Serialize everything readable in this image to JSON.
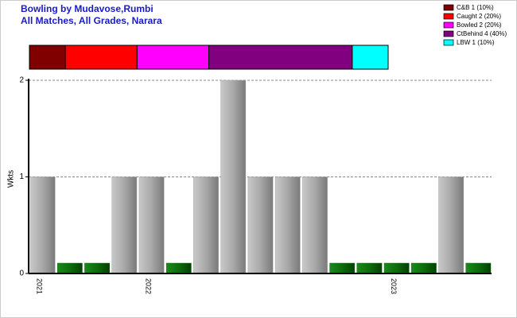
{
  "chart_data": [
    {
      "type": "bar",
      "title": "Bowling by Mudavose,Rumbi",
      "subtitle": "All Matches, All Grades, Narara",
      "y_label": "Wkts",
      "categories": [
        "2021",
        null,
        null,
        null,
        "2022",
        null,
        null,
        null,
        null,
        null,
        null,
        null,
        null,
        "2023",
        null,
        null,
        null
      ],
      "values": [
        1,
        0,
        0,
        1,
        1,
        0,
        1,
        2,
        1,
        1,
        1,
        0,
        0,
        0,
        0,
        1,
        0
      ],
      "color": "#a0a0a0",
      "zero_color": "#0a6e0a",
      "ylim": [
        0,
        2
      ],
      "yticks": [
        0,
        1,
        2
      ],
      "grid": true
    },
    {
      "type": "proportion",
      "categories": [
        "C&B 1 (10%)",
        "Caught 2 (20%)",
        "Bowled 2 (20%)",
        "CtBehind 4 (40%)",
        "LBW 1 (10%)"
      ],
      "values": [
        1,
        2,
        2,
        4,
        1
      ],
      "colors": [
        "#800000",
        "#ff0000",
        "#ff00ff",
        "#800080",
        "#00ffff"
      ]
    }
  ]
}
